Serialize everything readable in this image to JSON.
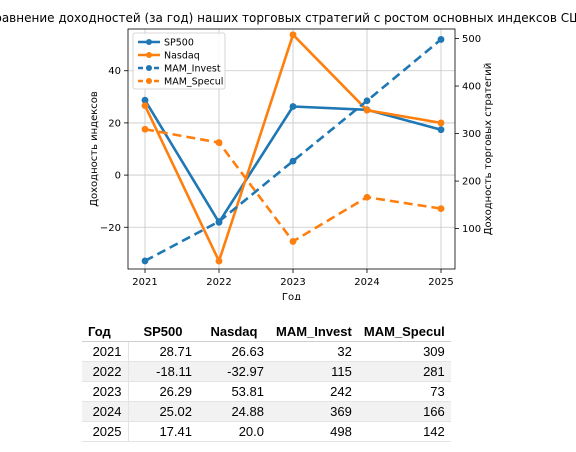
{
  "chart_data": {
    "type": "line",
    "title": "Сравнение доходностей (за год) наших торговых стратегий с ростом основных индексов США",
    "xlabel": "Год",
    "ylabel_left": "Доходность индексов",
    "ylabel_right": "Доходность торговых стратегий",
    "x": [
      2021,
      2022,
      2023,
      2024,
      2025
    ],
    "x_ticks": [
      "2021",
      "2022",
      "2023",
      "2024",
      "2025"
    ],
    "ylim_left": [
      -36,
      56
    ],
    "ylim_right": [
      15,
      520
    ],
    "yticks_left": [
      -20,
      0,
      20,
      40
    ],
    "yticks_left_labels": [
      "−20",
      "0",
      "20",
      "40"
    ],
    "yticks_right": [
      100,
      200,
      300,
      400,
      500
    ],
    "yticks_right_labels": [
      "100",
      "200",
      "300",
      "400",
      "500"
    ],
    "grid": true,
    "legend_position": "top-left",
    "series": [
      {
        "name": "SP500",
        "axis": "left",
        "style": "solid",
        "color": "#1f77b4",
        "values": [
          28.71,
          -18.11,
          26.29,
          25.02,
          17.41
        ]
      },
      {
        "name": "Nasdaq",
        "axis": "left",
        "style": "solid",
        "color": "#ff7f0e",
        "values": [
          26.63,
          -32.97,
          53.81,
          24.88,
          20.0
        ]
      },
      {
        "name": "MAM_Invest",
        "axis": "right",
        "style": "dashed",
        "color": "#1f77b4",
        "values": [
          32,
          115,
          242,
          369,
          498
        ]
      },
      {
        "name": "MAM_Specul",
        "axis": "right",
        "style": "dashed",
        "color": "#ff7f0e",
        "values": [
          309,
          281,
          73,
          166,
          142
        ]
      }
    ]
  },
  "table": {
    "headers": [
      "Год",
      "SP500",
      "Nasdaq",
      "MAM_Invest",
      "MAM_Specul"
    ],
    "rows": [
      [
        "2021",
        "28.71",
        "26.63",
        "32",
        "309"
      ],
      [
        "2022",
        "-18.11",
        "-32.97",
        "115",
        "281"
      ],
      [
        "2023",
        "26.29",
        "53.81",
        "242",
        "73"
      ],
      [
        "2024",
        "25.02",
        "24.88",
        "369",
        "166"
      ],
      [
        "2025",
        "17.41",
        "20.0",
        "498",
        "142"
      ]
    ]
  }
}
